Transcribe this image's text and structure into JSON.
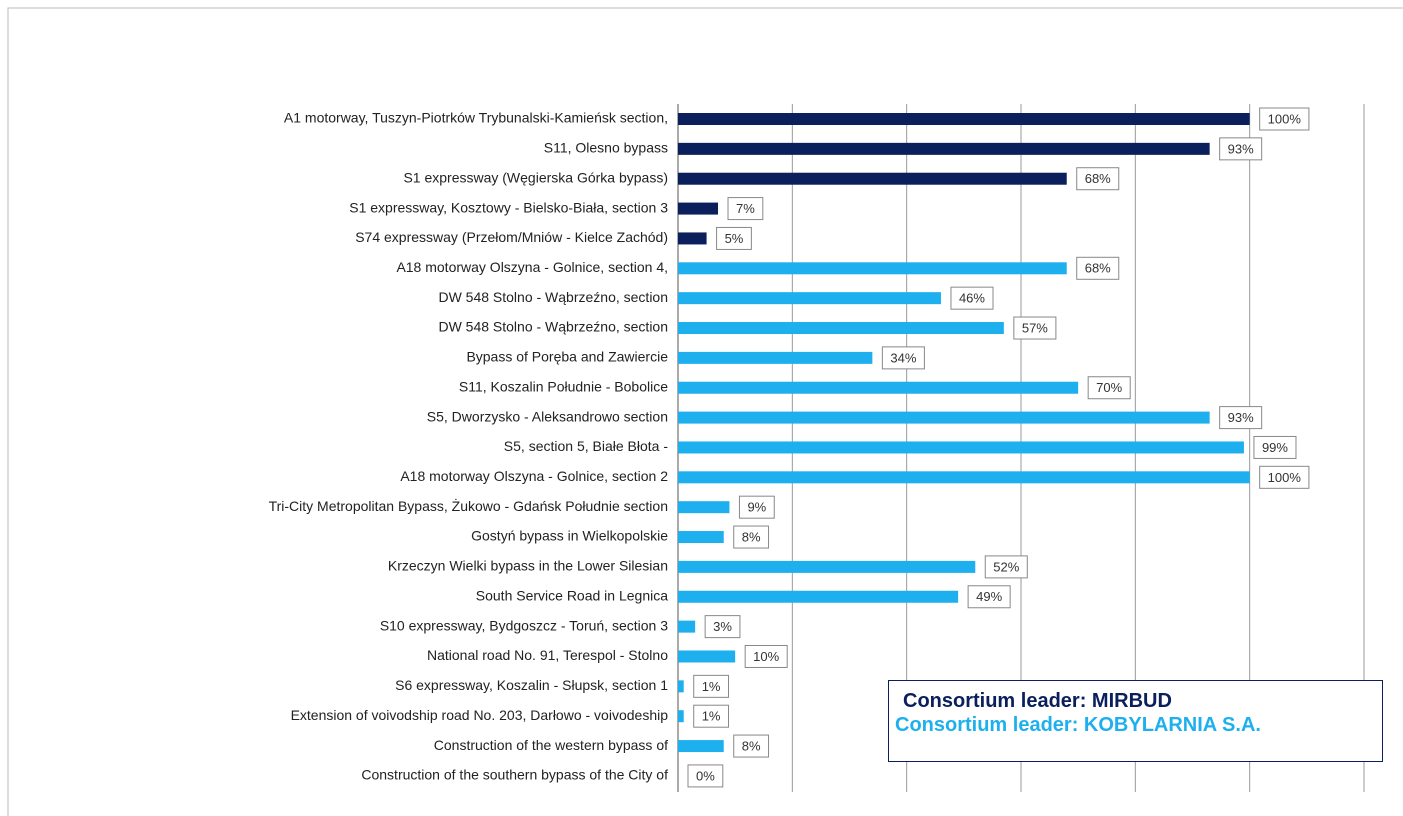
{
  "chart_data": {
    "type": "bar",
    "orientation": "horizontal",
    "categories": [
      "A1 motorway, Tuszyn-Piotrków Trybunalski-Kamieńsk section,",
      "S11, Olesno bypass",
      "S1 expressway (Węgierska Górka bypass)",
      "S1 expressway, Kosztowy - Bielsko-Biała, section 3",
      "S74 expressway (Przełom/Mniów - Kielce Zachód)",
      "A18 motorway Olszyna - Golnice, section 4,",
      "DW 548 Stolno - Wąbrzeźno, section",
      "DW 548 Stolno - Wąbrzeźno, section",
      "Bypass of Poręba and Zawiercie",
      "S11, Koszalin Południe - Bobolice",
      "S5, Dworzysko - Aleksandrowo section",
      "S5, section 5, Białe Błota -",
      "A18 motorway Olszyna - Golnice, section 2",
      "Tri-City Metropolitan Bypass, Żukowo - Gdańsk Południe section",
      "Gostyń bypass in Wielkopolskie",
      "Krzeczyn Wielki bypass in the Lower Silesian",
      "South Service Road in Legnica",
      "S10 expressway, Bydgoszcz - Toruń, section 3",
      "National road No. 91, Terespol - Stolno",
      "S6 expressway, Koszalin - Słupsk, section 1",
      "Extension of voivodship road No. 203, Darłowo - voivodeship",
      "Construction of the western bypass of",
      "Construction of the southern bypass of the City of"
    ],
    "series": [
      {
        "name": "Consortium leader: MIRBUD",
        "color": "#0b1f5c",
        "values": [
          100,
          93,
          68,
          7,
          5,
          null,
          null,
          null,
          null,
          null,
          null,
          null,
          null,
          null,
          null,
          null,
          null,
          null,
          null,
          null,
          null,
          null,
          null
        ],
        "value_labels": [
          "100%",
          "93%",
          "68%",
          "7%",
          "5%",
          null,
          null,
          null,
          null,
          null,
          null,
          null,
          null,
          null,
          null,
          null,
          null,
          null,
          null,
          null,
          null,
          null,
          null
        ]
      },
      {
        "name": "Consortium leader: KOBYLARNIA S.A.",
        "color": "#1eb0ee",
        "values": [
          null,
          null,
          null,
          null,
          null,
          68,
          46,
          57,
          34,
          70,
          93,
          99,
          100,
          9,
          8,
          52,
          49,
          3,
          10,
          1,
          1,
          8,
          0
        ],
        "value_labels": [
          null,
          null,
          null,
          null,
          null,
          "68%",
          "46%",
          "57%",
          "34%",
          "70%",
          "93%",
          "99%",
          "100%",
          "9%",
          "8%",
          "52%",
          "49%",
          "3%",
          "10%",
          "1%",
          "1%",
          "8%",
          "0%"
        ]
      }
    ],
    "xlim": [
      0,
      120
    ],
    "xticks": [
      0,
      20,
      40,
      60,
      80,
      100,
      120
    ],
    "grid": true
  }
}
